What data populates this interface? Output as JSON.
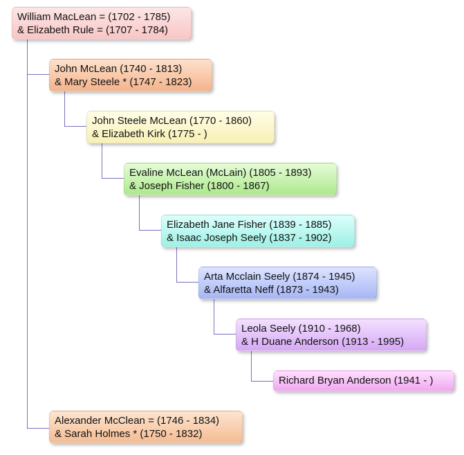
{
  "nodes": [
    {
      "lines": [
        "William MacLean = (1702 - 1785)",
        "& Elizabeth Rule = (1707 - 1784)"
      ]
    },
    {
      "lines": [
        "John McLean (1740 - 1813)",
        "& Mary Steele * (1747 - 1823)"
      ]
    },
    {
      "lines": [
        "John Steele McLean (1770 - 1860)",
        "& Elizabeth Kirk (1775 - )"
      ]
    },
    {
      "lines": [
        "Evaline McLean (McLain) (1805 - 1893)",
        "& Joseph Fisher (1800 - 1867)"
      ]
    },
    {
      "lines": [
        "Elizabeth Jane Fisher (1839 - 1885)",
        "& Isaac Joseph Seely (1837 - 1902)"
      ]
    },
    {
      "lines": [
        "Arta Mcclain Seely (1874 - 1945)",
        "& Alfaretta Neff (1873 - 1943)"
      ]
    },
    {
      "lines": [
        "Leola Seely (1910 - 1968)",
        "& H Duane Anderson (1913 - 1995)"
      ]
    },
    {
      "lines": [
        "Richard Bryan Anderson (1941 - )"
      ]
    },
    {
      "lines": [
        "Alexander McClean = (1746 - 1834)",
        "& Sarah Holmes * (1750 - 1832)"
      ]
    }
  ]
}
